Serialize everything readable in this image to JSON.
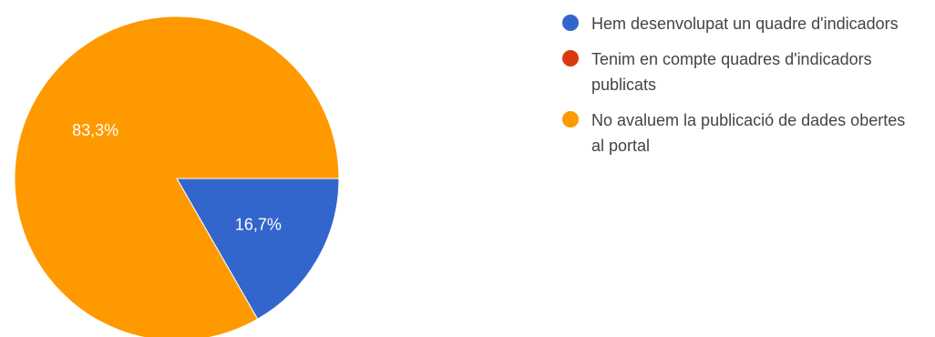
{
  "chart_data": {
    "type": "pie",
    "title": "",
    "slices": [
      {
        "label": "Hem desenvolupat un quadre d'indicadors",
        "value": 16.7,
        "value_label": "16,7%",
        "color": "#3366cc"
      },
      {
        "label": "Tenim en compte quadres d'indicadors publicats",
        "value": 0,
        "value_label": "",
        "color": "#dc3912"
      },
      {
        "label": "No avaluem la publicació de dades obertes al portal",
        "value": 83.3,
        "value_label": "83,3%",
        "color": "#ff9900"
      }
    ],
    "legend_position": "right"
  }
}
